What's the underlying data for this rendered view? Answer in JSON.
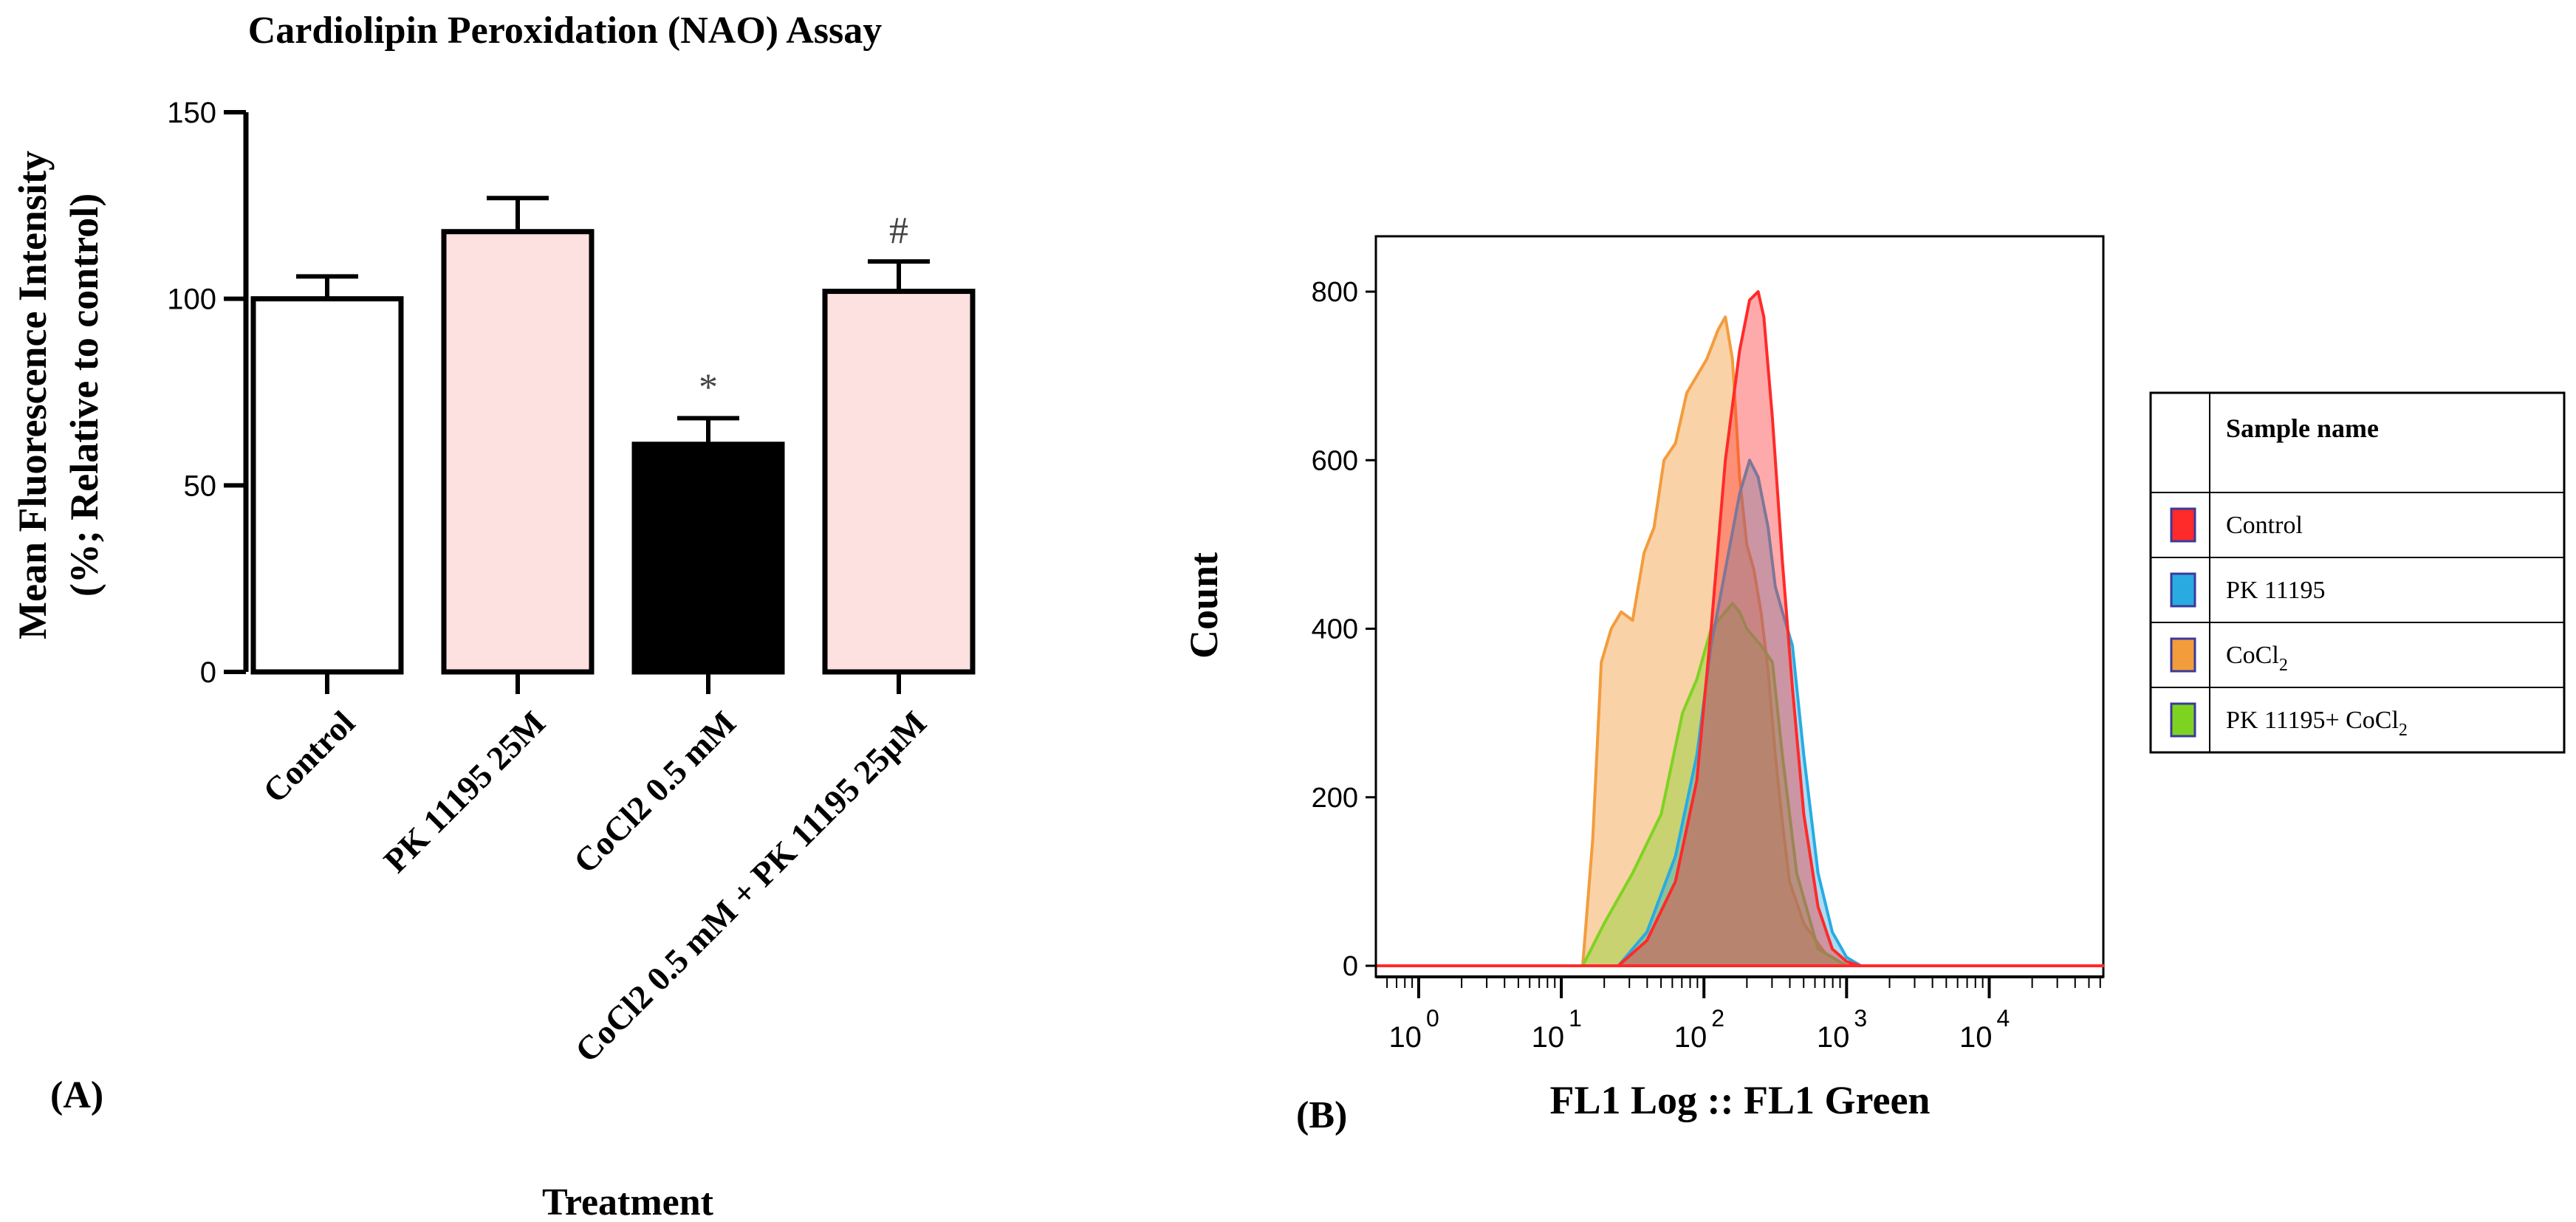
{
  "chart_data": [
    {
      "panel_label": "(A)",
      "type": "bar",
      "title": "Cardiolipin Peroxidation (NAO) Assay",
      "xlabel": "Treatment",
      "ylabel_line1": "Mean Fluorescence Intensity",
      "ylabel_line2": "(%; Relative to control)",
      "ylim": [
        0,
        150
      ],
      "yticks": [
        "0",
        "50",
        "100",
        "150"
      ],
      "categories": [
        "Control",
        "PK 11195 25M",
        "CoCl2 0.5 mM",
        "CoCl2 0.5 mM + PK 11195 25µM"
      ],
      "values": [
        100,
        118,
        61,
        102
      ],
      "errors": [
        6,
        9,
        7,
        8
      ],
      "annotations": [
        "",
        "",
        "*",
        "#"
      ],
      "bar_colors": [
        "#ffffff",
        "#fde0e0",
        "#000000",
        "#fde0e0"
      ]
    },
    {
      "panel_label": "(B)",
      "type": "area",
      "xlabel": "FL1 Log :: FL1 Green",
      "ylabel": "Count",
      "ylim": [
        0,
        850
      ],
      "yticks": [
        "0",
        "200",
        "400",
        "600",
        "800"
      ],
      "xscale": "log",
      "xlim_log10": [
        -0.3,
        4.8
      ],
      "xtick_bases": [
        "10",
        "10",
        "10",
        "10",
        "10"
      ],
      "xtick_exponents": [
        "0",
        "1",
        "2",
        "3",
        "4"
      ],
      "legend_header": "Sample name",
      "series": [
        {
          "name": "CoCl2",
          "legend_label": "CoCl",
          "legend_subscript": "2",
          "color": "#f39c3c",
          "x_log10": [
            -0.3,
            1.15,
            1.22,
            1.28,
            1.35,
            1.42,
            1.5,
            1.58,
            1.65,
            1.72,
            1.8,
            1.88,
            1.95,
            2.02,
            2.1,
            2.15,
            2.2,
            2.25,
            2.3,
            2.35,
            2.4,
            2.45,
            2.5,
            2.55,
            2.6,
            2.7,
            2.85,
            3.0,
            4.8
          ],
          "counts": [
            0,
            0,
            150,
            360,
            400,
            420,
            410,
            490,
            520,
            600,
            620,
            680,
            700,
            720,
            755,
            770,
            720,
            580,
            500,
            470,
            420,
            350,
            250,
            170,
            100,
            50,
            15,
            0,
            0
          ]
        },
        {
          "name": "PK 11195+ CoCl2",
          "legend_label": "PK 11195+ CoCl",
          "legend_subscript": "2",
          "color": "#7ed321",
          "x_log10": [
            -0.3,
            1.15,
            1.3,
            1.5,
            1.7,
            1.85,
            1.95,
            2.05,
            2.15,
            2.2,
            2.25,
            2.3,
            2.35,
            2.4,
            2.48,
            2.55,
            2.65,
            2.8,
            3.0,
            4.8
          ],
          "counts": [
            0,
            0,
            50,
            110,
            180,
            300,
            340,
            400,
            420,
            430,
            420,
            400,
            390,
            380,
            360,
            250,
            110,
            20,
            0,
            0
          ]
        },
        {
          "name": "PK 11195",
          "legend_label": "PK 11195",
          "legend_subscript": "",
          "color": "#29abe2",
          "x_log10": [
            -0.3,
            1.4,
            1.6,
            1.8,
            1.95,
            2.05,
            2.15,
            2.25,
            2.32,
            2.38,
            2.45,
            2.5,
            2.55,
            2.62,
            2.7,
            2.8,
            2.9,
            3.0,
            3.1,
            4.8
          ],
          "counts": [
            0,
            0,
            40,
            130,
            250,
            380,
            470,
            560,
            600,
            580,
            520,
            450,
            420,
            380,
            250,
            110,
            40,
            10,
            0,
            0
          ]
        },
        {
          "name": "Control",
          "legend_label": "Control",
          "legend_subscript": "",
          "color": "#ff2a2a",
          "x_log10": [
            -0.3,
            1.4,
            1.6,
            1.8,
            1.95,
            2.05,
            2.15,
            2.25,
            2.32,
            2.38,
            2.42,
            2.48,
            2.55,
            2.62,
            2.7,
            2.8,
            2.9,
            3.0,
            3.1,
            4.8
          ],
          "counts": [
            0,
            0,
            30,
            100,
            220,
            400,
            600,
            730,
            790,
            800,
            770,
            650,
            480,
            330,
            180,
            70,
            20,
            5,
            0,
            0
          ]
        }
      ],
      "legend_order": [
        "Control",
        "PK 11195",
        "CoCl2",
        "PK 11195+ CoCl2"
      ]
    }
  ]
}
